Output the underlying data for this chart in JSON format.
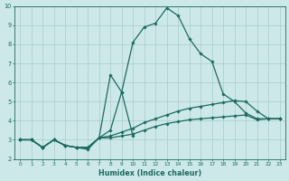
{
  "xlabel": "Humidex (Indice chaleur)",
  "bg_color": "#cde8e8",
  "grid_color": "#a8cccc",
  "line_color": "#1a6b60",
  "xlim": [
    -0.5,
    23.5
  ],
  "ylim": [
    2,
    10
  ],
  "yticks": [
    2,
    3,
    4,
    5,
    6,
    7,
    8,
    9,
    10
  ],
  "xticks": [
    0,
    1,
    2,
    3,
    4,
    5,
    6,
    7,
    8,
    9,
    10,
    11,
    12,
    13,
    14,
    15,
    16,
    17,
    18,
    19,
    20,
    21,
    22,
    23
  ],
  "series_peak": [
    [
      0,
      3.0
    ],
    [
      1,
      3.0
    ],
    [
      2,
      2.6
    ],
    [
      3,
      3.0
    ],
    [
      4,
      2.7
    ],
    [
      5,
      2.6
    ],
    [
      6,
      2.6
    ],
    [
      7,
      3.1
    ],
    [
      8,
      3.5
    ],
    [
      9,
      5.5
    ],
    [
      10,
      8.1
    ],
    [
      11,
      8.9
    ],
    [
      12,
      9.1
    ],
    [
      13,
      9.9
    ],
    [
      14,
      9.5
    ],
    [
      15,
      8.3
    ],
    [
      16,
      7.5
    ],
    [
      17,
      7.1
    ],
    [
      18,
      5.4
    ],
    [
      19,
      5.0
    ],
    [
      20,
      4.4
    ],
    [
      21,
      4.1
    ],
    [
      22,
      4.1
    ],
    [
      23,
      4.1
    ]
  ],
  "series_bump": [
    [
      0,
      3.0
    ],
    [
      1,
      3.0
    ],
    [
      2,
      2.6
    ],
    [
      3,
      3.0
    ],
    [
      4,
      2.7
    ],
    [
      5,
      2.6
    ],
    [
      6,
      2.5
    ],
    [
      7,
      3.1
    ],
    [
      8,
      6.4
    ],
    [
      9,
      5.5
    ],
    [
      10,
      3.2
    ]
  ],
  "series_mid": [
    [
      0,
      3.0
    ],
    [
      1,
      3.0
    ],
    [
      2,
      2.6
    ],
    [
      3,
      3.0
    ],
    [
      4,
      2.7
    ],
    [
      5,
      2.6
    ],
    [
      6,
      2.6
    ],
    [
      7,
      3.1
    ],
    [
      8,
      3.2
    ],
    [
      9,
      3.4
    ],
    [
      10,
      3.6
    ],
    [
      11,
      3.9
    ],
    [
      12,
      4.1
    ],
    [
      13,
      4.3
    ],
    [
      14,
      4.5
    ],
    [
      15,
      4.65
    ],
    [
      16,
      4.75
    ],
    [
      17,
      4.85
    ],
    [
      18,
      4.95
    ],
    [
      19,
      5.05
    ],
    [
      20,
      5.0
    ],
    [
      21,
      4.5
    ],
    [
      22,
      4.1
    ],
    [
      23,
      4.1
    ]
  ],
  "series_flat": [
    [
      0,
      3.0
    ],
    [
      1,
      3.0
    ],
    [
      2,
      2.6
    ],
    [
      3,
      3.0
    ],
    [
      4,
      2.7
    ],
    [
      5,
      2.6
    ],
    [
      6,
      2.6
    ],
    [
      7,
      3.1
    ],
    [
      8,
      3.1
    ],
    [
      9,
      3.2
    ],
    [
      10,
      3.3
    ],
    [
      11,
      3.5
    ],
    [
      12,
      3.7
    ],
    [
      13,
      3.85
    ],
    [
      14,
      3.95
    ],
    [
      15,
      4.05
    ],
    [
      16,
      4.1
    ],
    [
      17,
      4.15
    ],
    [
      18,
      4.2
    ],
    [
      19,
      4.25
    ],
    [
      20,
      4.3
    ],
    [
      21,
      4.05
    ],
    [
      22,
      4.1
    ],
    [
      23,
      4.1
    ]
  ]
}
